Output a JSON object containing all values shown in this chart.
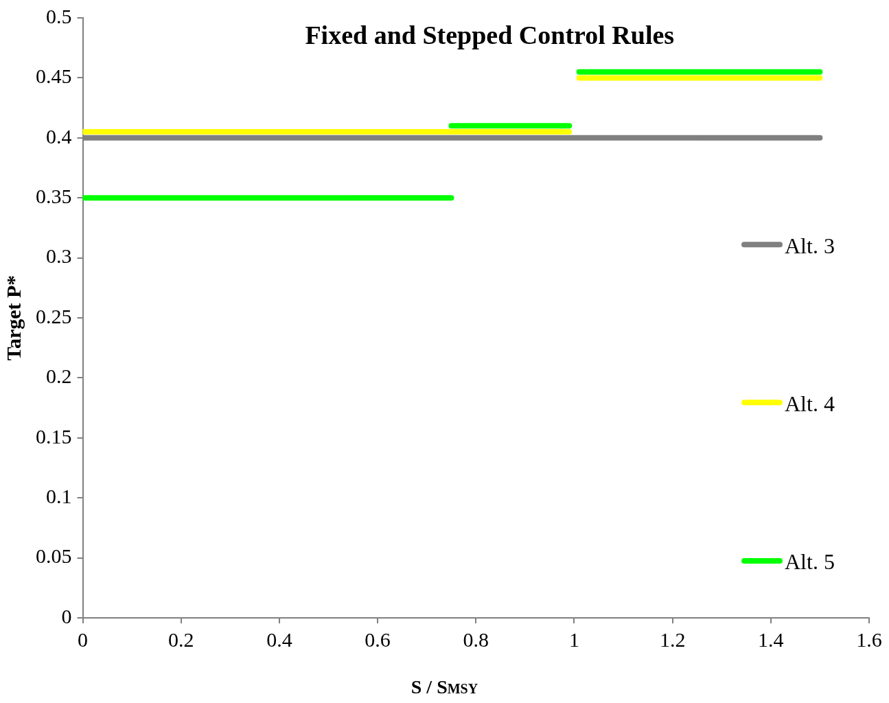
{
  "chart_data": {
    "type": "line",
    "title": "Fixed and Stepped Control Rules",
    "xlabel": "S / S$_{MSY}$",
    "ylabel": "Target P*",
    "xlim": [
      0,
      1.6
    ],
    "xticks": [
      0,
      0.2,
      0.4,
      0.6,
      0.8,
      1,
      1.2,
      1.4,
      1.6
    ],
    "ylim": [
      0,
      0.5
    ],
    "yticks": [
      0,
      0.05,
      0.1,
      0.15,
      0.2,
      0.25,
      0.3,
      0.35,
      0.4,
      0.45,
      0.5
    ],
    "grid": false,
    "legend": "right",
    "marker": "none",
    "series": [
      {
        "name": "Alt. 3",
        "color": "#808080",
        "x": [
          0,
          1.5
        ],
        "values": [
          0.4,
          0.4
        ]
      },
      {
        "name": "Alt. 4",
        "color": "#ffff00",
        "x": [
          0,
          0.99,
          1,
          1.01,
          1.5
        ],
        "values": [
          0.405,
          0.405,
          null,
          0.45,
          0.45
        ]
      },
      {
        "name": "Alt. 5",
        "color": "#00ff00",
        "x": [
          0,
          0.75,
          0.75,
          0.99,
          1,
          1.01,
          1.5
        ],
        "values": [
          0.35,
          0.35,
          0.41,
          0.41,
          null,
          0.455,
          0.455
        ]
      }
    ]
  }
}
